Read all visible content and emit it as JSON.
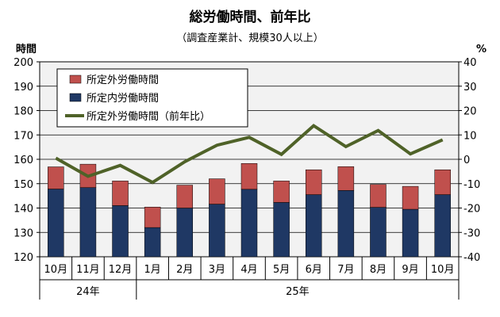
{
  "chart_data": {
    "type": "bar+line",
    "title": "総労働時間、前年比",
    "subtitle": "（調査産業計、規模30人以上）",
    "y_left_label": "時間",
    "y_right_label": "%",
    "y_left_range": [
      120,
      200
    ],
    "y_right_range": [
      -40,
      40
    ],
    "y_left_ticks": [
      "120",
      "130",
      "140",
      "150",
      "160",
      "170",
      "180",
      "190",
      "200"
    ],
    "y_right_ticks": [
      "-40",
      "-30",
      "-20",
      "-10",
      "0",
      "10",
      "20",
      "30",
      "40"
    ],
    "categories": [
      "10月",
      "11月",
      "12月",
      "1月",
      "2月",
      "3月",
      "4月",
      "5月",
      "6月",
      "7月",
      "8月",
      "9月",
      "10月"
    ],
    "year_groups": [
      {
        "label": "24年",
        "from": 0,
        "to": 2
      },
      {
        "label": "25年",
        "from": 3,
        "to": 12
      }
    ],
    "series": [
      {
        "name": "所定内労働時間",
        "kind": "stacked-bar",
        "color": "#1f3864",
        "values": [
          147.8,
          148.4,
          141.0,
          132.0,
          140.0,
          141.6,
          147.7,
          142.3,
          145.5,
          147.2,
          140.3,
          139.5,
          145.5
        ]
      },
      {
        "name": "所定外労働時間",
        "kind": "stacked-bar",
        "color": "#c0504d",
        "values": [
          9.1,
          9.6,
          10.1,
          8.4,
          9.4,
          10.4,
          10.6,
          8.8,
          10.2,
          9.8,
          9.4,
          9.4,
          10.2
        ]
      },
      {
        "name": "所定外労働時間（前年比）",
        "kind": "line",
        "axis": "right",
        "color": "#4f6228",
        "values": [
          0.5,
          -7.0,
          -2.5,
          -9.5,
          -1.0,
          5.8,
          9.0,
          2.0,
          13.8,
          5.2,
          11.8,
          2.2,
          8.0
        ]
      }
    ],
    "legend_position": "top-left",
    "grid": {
      "horizontal": true,
      "plot_background": "#f2f2f2"
    }
  }
}
